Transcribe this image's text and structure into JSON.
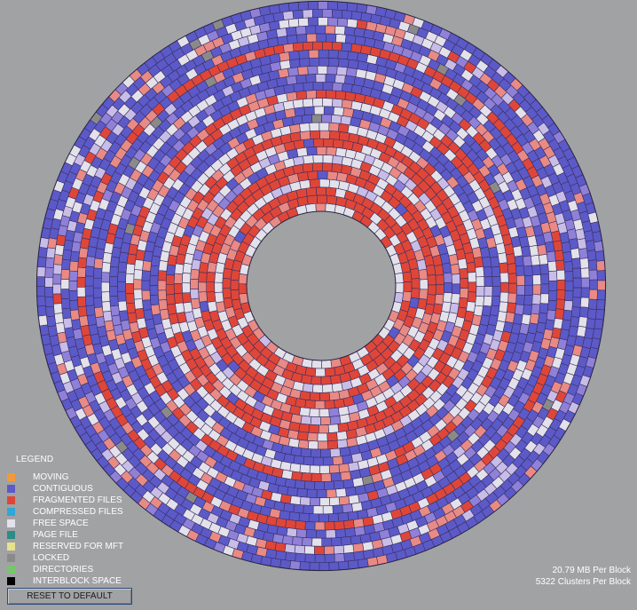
{
  "legend": {
    "title": "LEGEND",
    "items": [
      {
        "label": "MOVING",
        "color": "#f19a3a"
      },
      {
        "label": "CONTIGUOUS",
        "color": "#5c5ac8"
      },
      {
        "label": "FRAGMENTED FILES",
        "color": "#e04638"
      },
      {
        "label": "COMPRESSED FILES",
        "color": "#2fa7d8"
      },
      {
        "label": "FREE SPACE",
        "color": "#e3e1ea"
      },
      {
        "label": "PAGE FILE",
        "color": "#2d8c86"
      },
      {
        "label": "RESERVED FOR MFT",
        "color": "#e5e38c"
      },
      {
        "label": "LOCKED",
        "color": "#8a8a8a"
      },
      {
        "label": "DIRECTORIES",
        "color": "#77c66c"
      },
      {
        "label": "INTERBLOCK SPACE",
        "color": "#000000"
      }
    ]
  },
  "block_info": {
    "mb_per_block": "20.79 MB Per Block",
    "clusters_per_block": "5322 Clusters Per Block"
  },
  "controls": {
    "reset_label": "RESET TO DEFAULT"
  },
  "disk_map": {
    "blocks": "contiguous, fragmented files, free space and locked blocks arranged in concentric rings",
    "colors": {
      "contiguous": "#5c5ac8",
      "contiguous_light": "#8f80d8",
      "fragmented": "#e04638",
      "fragmented_light": "#e98a84",
      "free_space": "#e3e1ea",
      "lavender": "#c7bde7",
      "locked": "#8a8a8a",
      "grid_line": "#3a3060"
    }
  }
}
